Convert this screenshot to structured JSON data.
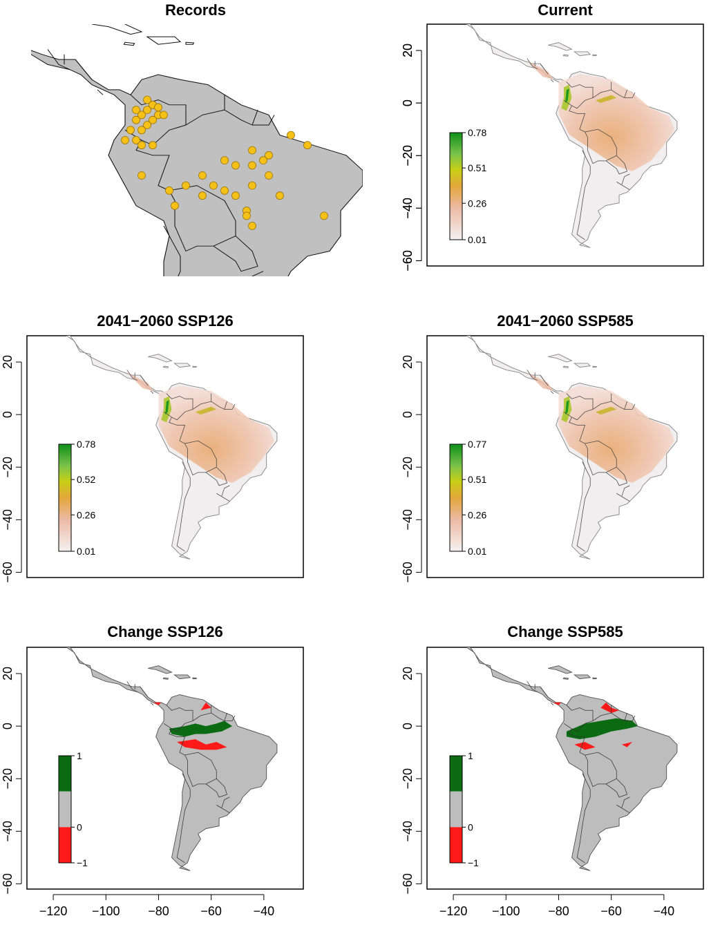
{
  "panels": {
    "records": {
      "title": "Records"
    },
    "current": {
      "title": "Current"
    },
    "ssp126": {
      "title": "2041−2060 SSP126"
    },
    "ssp585": {
      "title": "2041−2060 SSP585"
    },
    "change126": {
      "title": "Change SSP126"
    },
    "change585": {
      "title": "Change SSP585"
    }
  },
  "axes": {
    "y_ticks": [
      "20",
      "0",
      "−20",
      "−40",
      "−60"
    ],
    "x_ticks": [
      "−120",
      "−100",
      "−80",
      "−60",
      "−40"
    ]
  },
  "legends": {
    "current": [
      "0.78",
      "0.51",
      "0.26",
      "0.01"
    ],
    "ssp126": [
      "0.78",
      "0.52",
      "0.26",
      "0.01"
    ],
    "ssp585": [
      "0.77",
      "0.51",
      "0.26",
      "0.01"
    ],
    "change": [
      "1",
      "0",
      "−1"
    ]
  },
  "colors": {
    "land": "#bdbdbd",
    "point": "#f5c018",
    "gain": "#0a6b12",
    "loss": "#ff1a1a",
    "suit_low": "#f3e4e2",
    "suit_mid": "#e9a84e",
    "suit_high": "#1f9a1f"
  }
}
